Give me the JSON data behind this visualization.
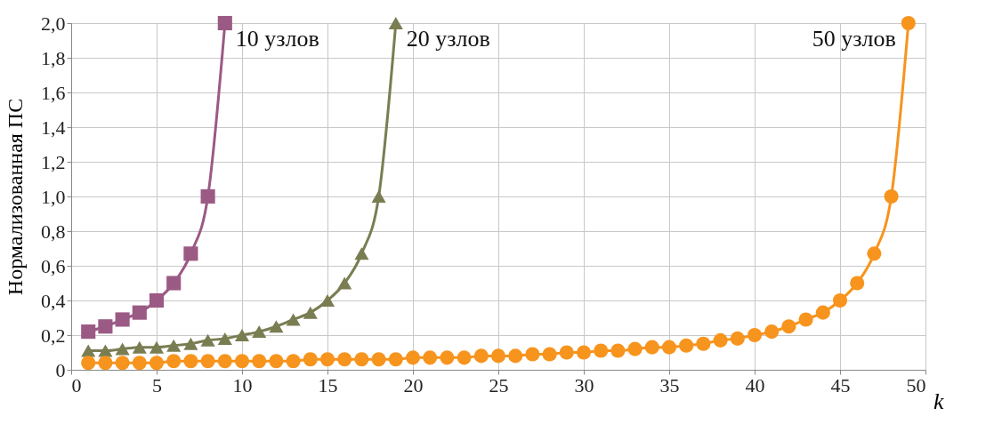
{
  "chart_data": {
    "type": "line",
    "xlabel": "k",
    "ylabel": "Нормализованная  ПС",
    "xlim": [
      0,
      50
    ],
    "xticks": [
      0,
      5,
      10,
      15,
      20,
      25,
      30,
      35,
      40,
      45,
      50
    ],
    "ylim": [
      0,
      2
    ],
    "yticks": [
      0,
      {
        "value": 0.2,
        "label": "0,2"
      },
      {
        "value": 0.4,
        "label": "0,4"
      },
      {
        "value": 0.6,
        "label": "0,6"
      },
      {
        "value": 0.8,
        "label": "0,8"
      },
      {
        "value": 1,
        "label": "1,0"
      },
      {
        "value": 1.2,
        "label": "1,2"
      },
      {
        "value": 1.4,
        "label": "1,4"
      },
      {
        "value": 1.6,
        "label": "1,6"
      },
      {
        "value": 1.8,
        "label": "1,8"
      },
      {
        "value": 2,
        "label": "2,0"
      }
    ],
    "grid": true,
    "line_style": "solid",
    "series": [
      {
        "name": "10 узлов",
        "color": "#9b5a84",
        "marker": "square",
        "x": [
          1,
          2,
          3,
          4,
          5,
          6,
          7,
          8,
          9
        ],
        "values": [
          0.22,
          0.25,
          0.29,
          0.33,
          0.4,
          0.5,
          0.67,
          1,
          2
        ]
      },
      {
        "name": "20 узлов",
        "color": "#7a7d52",
        "marker": "triangle",
        "x": [
          1,
          2,
          3,
          4,
          5,
          6,
          7,
          8,
          9,
          10,
          11,
          12,
          13,
          14,
          15,
          16,
          17,
          18,
          19
        ],
        "values": [
          0.11,
          0.11,
          0.12,
          0.13,
          0.13,
          0.14,
          0.15,
          0.17,
          0.18,
          0.2,
          0.22,
          0.25,
          0.29,
          0.33,
          0.4,
          0.5,
          0.67,
          1,
          2
        ]
      },
      {
        "name": "50 узлов",
        "color": "#f7941d",
        "marker": "circle",
        "x": [
          1,
          2,
          3,
          4,
          5,
          6,
          7,
          8,
          9,
          10,
          11,
          12,
          13,
          14,
          15,
          16,
          17,
          18,
          19,
          20,
          21,
          22,
          23,
          24,
          25,
          26,
          27,
          28,
          29,
          30,
          31,
          32,
          33,
          34,
          35,
          36,
          37,
          38,
          39,
          40,
          41,
          42,
          43,
          44,
          45,
          46,
          47,
          48,
          49
        ],
        "values": [
          0.04,
          0.04,
          0.04,
          0.04,
          0.04,
          0.05,
          0.05,
          0.05,
          0.05,
          0.05,
          0.05,
          0.05,
          0.05,
          0.06,
          0.06,
          0.06,
          0.06,
          0.06,
          0.06,
          0.07,
          0.07,
          0.07,
          0.07,
          0.08,
          0.08,
          0.08,
          0.09,
          0.09,
          0.1,
          0.1,
          0.11,
          0.11,
          0.12,
          0.13,
          0.13,
          0.14,
          0.15,
          0.17,
          0.18,
          0.2,
          0.22,
          0.25,
          0.29,
          0.33,
          0.4,
          0.5,
          0.67,
          1,
          2
        ]
      }
    ]
  }
}
